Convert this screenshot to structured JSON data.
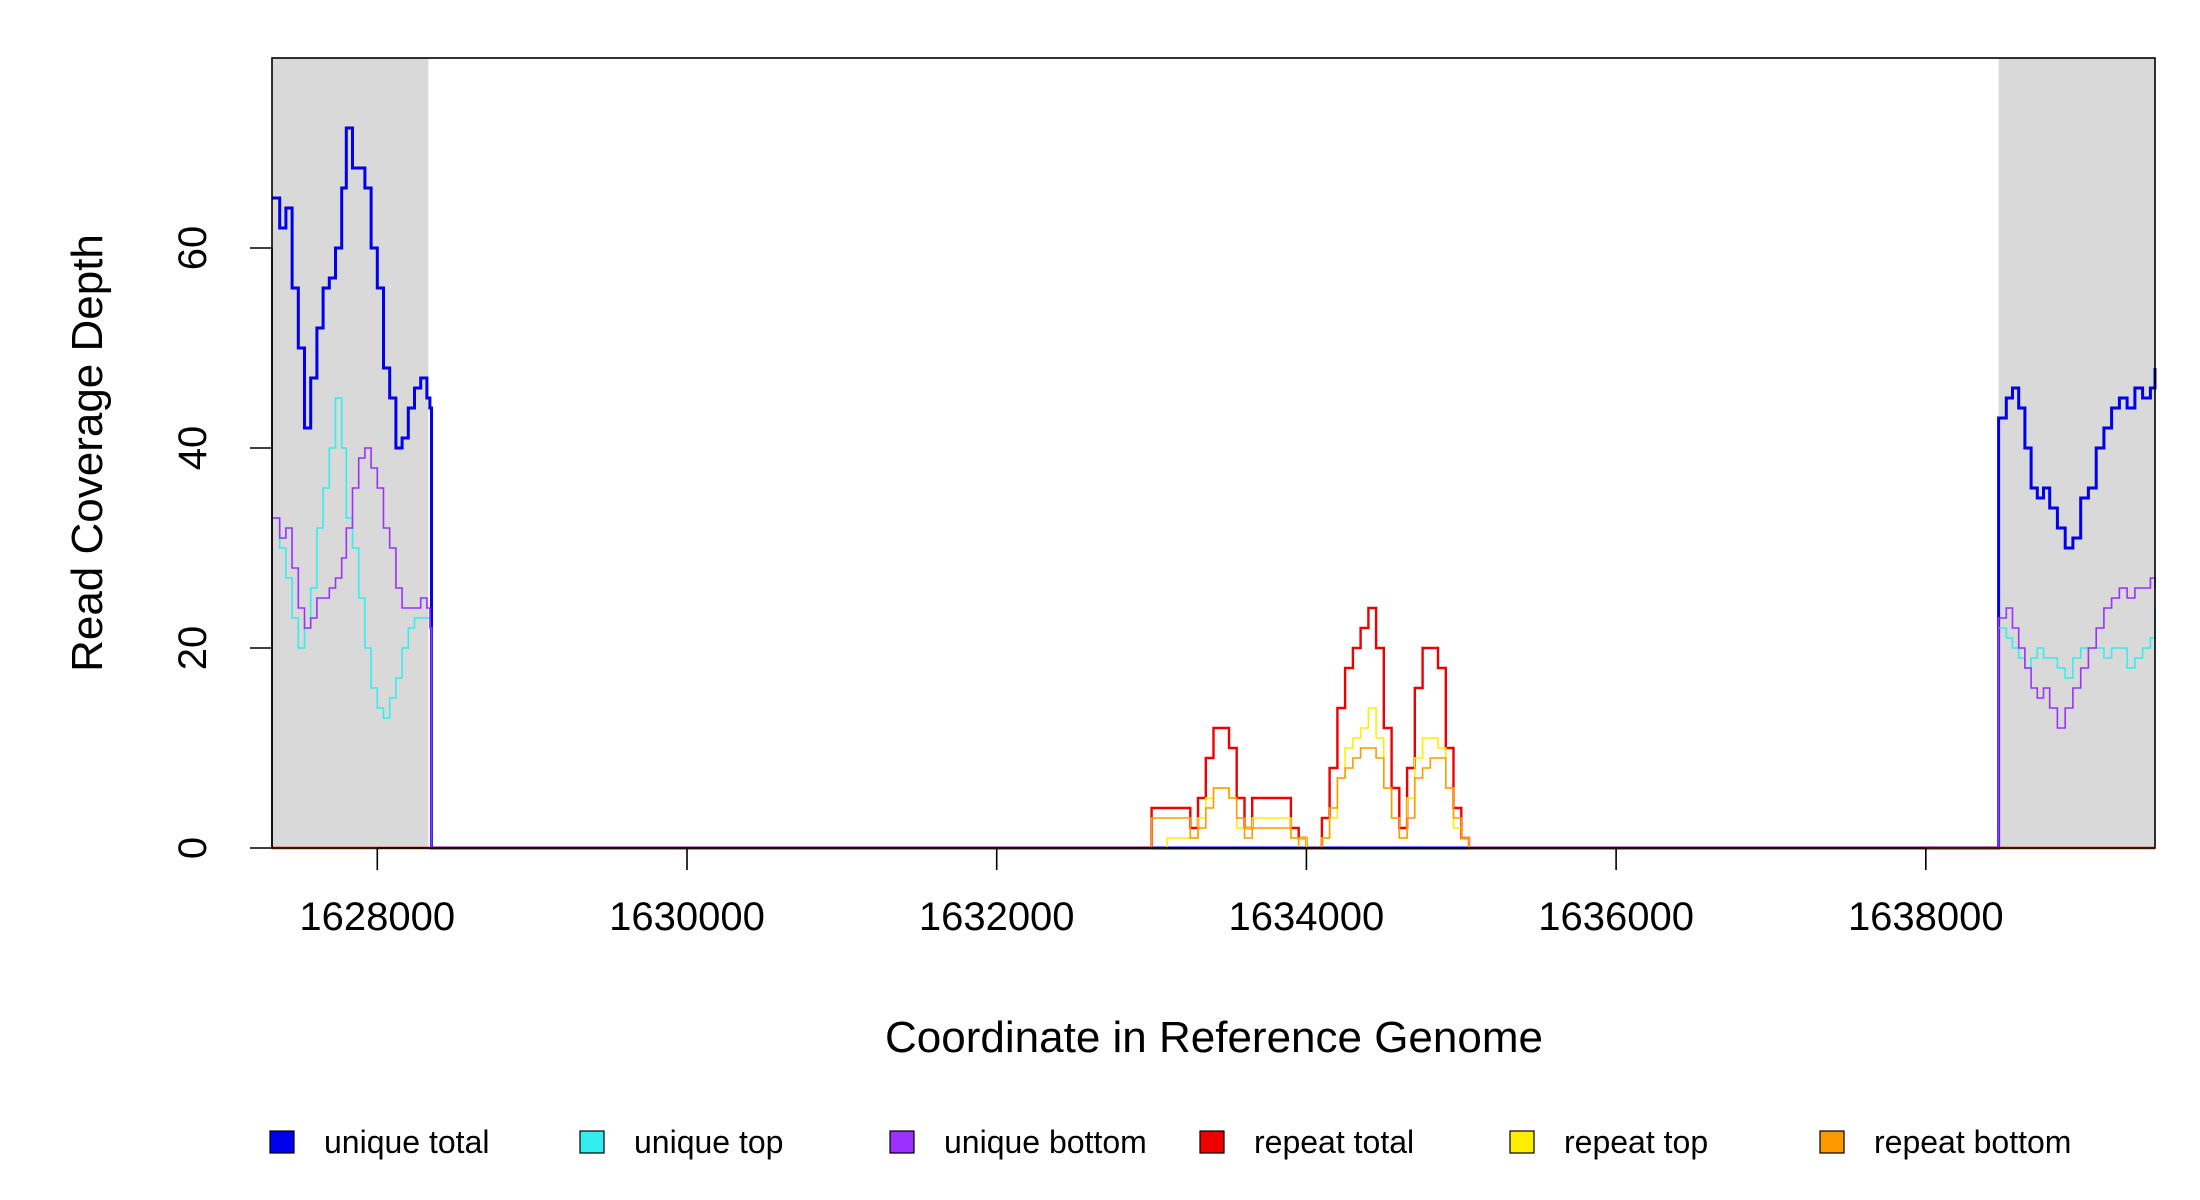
{
  "chart_data": {
    "type": "line",
    "xlabel": "Coordinate in Reference Genome",
    "ylabel": "Read Coverage Depth",
    "xlim": [
      1627320,
      1639480
    ],
    "ylim": [
      0,
      79
    ],
    "x_ticks": [
      1628000,
      1630000,
      1632000,
      1634000,
      1636000,
      1638000
    ],
    "y_ticks": [
      0,
      20,
      40,
      60
    ],
    "x_tick_labels": [
      "1628000",
      "1630000",
      "1632000",
      "1634000",
      "1636000",
      "1638000"
    ],
    "y_tick_labels": [
      "0",
      "20",
      "40",
      "60"
    ],
    "shaded_regions": [
      {
        "x0": 1627320,
        "x1": 1628330,
        "color": "#d9d9d9"
      },
      {
        "x0": 1638470,
        "x1": 1639480,
        "color": "#d9d9d9"
      }
    ],
    "legend_position": "bottom",
    "series": [
      {
        "name": "unique total",
        "color": "#0000ee",
        "width": 3,
        "x": [
          1627320,
          1627370,
          1627410,
          1627450,
          1627490,
          1627530,
          1627570,
          1627610,
          1627650,
          1627690,
          1627730,
          1627770,
          1627800,
          1627840,
          1627880,
          1627920,
          1627960,
          1628000,
          1628040,
          1628080,
          1628120,
          1628160,
          1628200,
          1628240,
          1628280,
          1628320,
          1628340,
          1628350,
          1628400,
          1629000,
          1630000,
          1631000,
          1632000,
          1633000,
          1634000,
          1635000,
          1636000,
          1637000,
          1638000,
          1638460,
          1638470,
          1638520,
          1638560,
          1638600,
          1638640,
          1638680,
          1638720,
          1638760,
          1638800,
          1638850,
          1638900,
          1638950,
          1639000,
          1639050,
          1639100,
          1639150,
          1639200,
          1639250,
          1639300,
          1639350,
          1639400,
          1639450,
          1639480
        ],
        "y": [
          65,
          62,
          64,
          56,
          50,
          42,
          47,
          52,
          56,
          57,
          60,
          66,
          72,
          68,
          68,
          66,
          60,
          56,
          48,
          45,
          40,
          41,
          44,
          46,
          47,
          45,
          44,
          0,
          0,
          0,
          0,
          0,
          0,
          0,
          0,
          0,
          0,
          0,
          0,
          0,
          43,
          45,
          46,
          44,
          40,
          36,
          35,
          36,
          34,
          32,
          30,
          31,
          35,
          36,
          40,
          42,
          44,
          45,
          44,
          46,
          45,
          46,
          48
        ]
      },
      {
        "name": "unique top",
        "color": "#33eeee",
        "width": 1.6,
        "x": [
          1627320,
          1627370,
          1627410,
          1627450,
          1627490,
          1627530,
          1627570,
          1627610,
          1627650,
          1627690,
          1627730,
          1627770,
          1627800,
          1627840,
          1627880,
          1627920,
          1627960,
          1628000,
          1628040,
          1628080,
          1628120,
          1628160,
          1628200,
          1628240,
          1628280,
          1628320,
          1628340,
          1628350,
          1628400,
          1629000,
          1630000,
          1631000,
          1632000,
          1633000,
          1634000,
          1635000,
          1636000,
          1637000,
          1638000,
          1638460,
          1638470,
          1638520,
          1638560,
          1638600,
          1638640,
          1638680,
          1638720,
          1638760,
          1638800,
          1638850,
          1638900,
          1638950,
          1639000,
          1639050,
          1639100,
          1639150,
          1639200,
          1639250,
          1639300,
          1639350,
          1639400,
          1639450,
          1639480
        ],
        "y": [
          33,
          30,
          27,
          23,
          20,
          22,
          26,
          32,
          36,
          40,
          45,
          40,
          33,
          30,
          25,
          20,
          16,
          14,
          13,
          15,
          17,
          20,
          22,
          23,
          23,
          23,
          22,
          0,
          0,
          0,
          0,
          0,
          0,
          0,
          0,
          0,
          0,
          0,
          0,
          0,
          22,
          21,
          20,
          19,
          18,
          19,
          20,
          19,
          19,
          18,
          17,
          19,
          20,
          20,
          20,
          19,
          20,
          20,
          18,
          19,
          20,
          21,
          24
        ]
      },
      {
        "name": "unique bottom",
        "color": "#9b30ff",
        "width": 1.6,
        "x": [
          1627320,
          1627370,
          1627410,
          1627450,
          1627490,
          1627530,
          1627570,
          1627610,
          1627650,
          1627690,
          1627730,
          1627770,
          1627800,
          1627840,
          1627880,
          1627920,
          1627960,
          1628000,
          1628040,
          1628080,
          1628120,
          1628160,
          1628200,
          1628240,
          1628280,
          1628320,
          1628340,
          1628350,
          1628400,
          1629000,
          1630000,
          1631000,
          1632000,
          1633000,
          1634000,
          1635000,
          1636000,
          1637000,
          1638000,
          1638460,
          1638470,
          1638520,
          1638560,
          1638600,
          1638640,
          1638680,
          1638720,
          1638760,
          1638800,
          1638850,
          1638900,
          1638950,
          1639000,
          1639050,
          1639100,
          1639150,
          1639200,
          1639250,
          1639300,
          1639350,
          1639400,
          1639450,
          1639480
        ],
        "y": [
          33,
          31,
          32,
          28,
          24,
          22,
          23,
          25,
          25,
          26,
          27,
          29,
          32,
          36,
          39,
          40,
          38,
          36,
          32,
          30,
          26,
          24,
          24,
          24,
          25,
          24,
          22,
          0,
          0,
          0,
          0,
          0,
          0,
          0,
          0,
          0,
          0,
          0,
          0,
          0,
          23,
          24,
          22,
          20,
          18,
          16,
          15,
          16,
          14,
          12,
          14,
          16,
          18,
          20,
          22,
          24,
          25,
          26,
          25,
          26,
          26,
          27,
          26
        ]
      },
      {
        "name": "repeat total",
        "color": "#ee0000",
        "width": 2.4,
        "x": [
          1627320,
          1632950,
          1633000,
          1633200,
          1633250,
          1633300,
          1633350,
          1633400,
          1633450,
          1633500,
          1633550,
          1633600,
          1633650,
          1633850,
          1633900,
          1633950,
          1634000,
          1634050,
          1634100,
          1634150,
          1634200,
          1634250,
          1634300,
          1634350,
          1634400,
          1634450,
          1634500,
          1634550,
          1634600,
          1634650,
          1634700,
          1634750,
          1634800,
          1634850,
          1634900,
          1634950,
          1635000,
          1635050,
          1639480
        ],
        "y": [
          0,
          0,
          4,
          4,
          2,
          5,
          9,
          12,
          12,
          10,
          5,
          2,
          5,
          5,
          2,
          1,
          0,
          0,
          3,
          8,
          14,
          18,
          20,
          22,
          24,
          20,
          12,
          6,
          2,
          8,
          16,
          20,
          20,
          18,
          10,
          4,
          1,
          0,
          0
        ]
      },
      {
        "name": "repeat top",
        "color": "#ffee00",
        "width": 1.6,
        "x": [
          1627320,
          1633000,
          1633100,
          1633200,
          1633300,
          1633350,
          1633400,
          1633450,
          1633500,
          1633550,
          1633650,
          1633850,
          1633900,
          1634000,
          1634100,
          1634150,
          1634200,
          1634250,
          1634300,
          1634350,
          1634400,
          1634450,
          1634500,
          1634550,
          1634600,
          1634650,
          1634700,
          1634750,
          1634800,
          1634850,
          1634900,
          1634950,
          1635000,
          1635050,
          1639480
        ],
        "y": [
          0,
          0,
          1,
          1,
          3,
          5,
          6,
          6,
          5,
          2,
          3,
          3,
          1,
          0,
          1,
          3,
          7,
          10,
          11,
          12,
          14,
          11,
          6,
          3,
          1,
          5,
          9,
          11,
          11,
          10,
          6,
          2,
          1,
          0,
          0
        ]
      },
      {
        "name": "repeat bottom",
        "color": "#ff9900",
        "width": 1.6,
        "x": [
          1627320,
          1632950,
          1633000,
          1633200,
          1633250,
          1633300,
          1633350,
          1633400,
          1633450,
          1633500,
          1633550,
          1633600,
          1633650,
          1633850,
          1633900,
          1633950,
          1634100,
          1634150,
          1634200,
          1634250,
          1634300,
          1634350,
          1634400,
          1634450,
          1634500,
          1634550,
          1634600,
          1634650,
          1634700,
          1634750,
          1634800,
          1634850,
          1634900,
          1634950,
          1635000,
          1635050,
          1639480
        ],
        "y": [
          0,
          0,
          3,
          3,
          1,
          2,
          4,
          6,
          6,
          5,
          3,
          1,
          2,
          2,
          1,
          0,
          1,
          4,
          7,
          8,
          9,
          10,
          10,
          9,
          6,
          3,
          1,
          3,
          7,
          8,
          9,
          9,
          6,
          3,
          1,
          0,
          0
        ]
      }
    ]
  }
}
